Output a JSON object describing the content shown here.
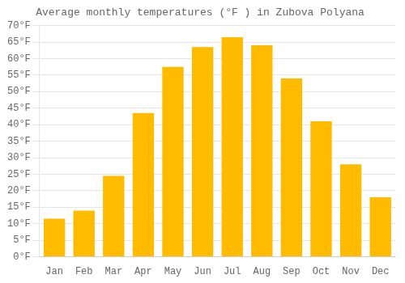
{
  "chart_data": {
    "type": "bar",
    "title": "Average monthly temperatures (°F ) in Zubova Polyana",
    "categories": [
      "Jan",
      "Feb",
      "Mar",
      "Apr",
      "May",
      "Jun",
      "Jul",
      "Aug",
      "Sep",
      "Oct",
      "Nov",
      "Dec"
    ],
    "values": [
      11.5,
      14.0,
      24.5,
      43.5,
      57.5,
      63.5,
      66.5,
      64.0,
      54.0,
      41.0,
      28.0,
      18.0
    ],
    "color": "#FFBB00",
    "ylim": [
      0,
      70
    ],
    "yticks": [
      {
        "value": 0,
        "label": "0°F"
      },
      {
        "value": 5,
        "label": "5°F"
      },
      {
        "value": 10,
        "label": "10°F"
      },
      {
        "value": 15,
        "label": "15°F"
      },
      {
        "value": 20,
        "label": "20°F"
      },
      {
        "value": 25,
        "label": "25°F"
      },
      {
        "value": 30,
        "label": "30°F"
      },
      {
        "value": 35,
        "label": "35°F"
      },
      {
        "value": 40,
        "label": "40°F"
      },
      {
        "value": 45,
        "label": "45°F"
      },
      {
        "value": 50,
        "label": "50°F"
      },
      {
        "value": 55,
        "label": "55°F"
      },
      {
        "value": 60,
        "label": "60°F"
      },
      {
        "value": 65,
        "label": "65°F"
      },
      {
        "value": 70,
        "label": "70°F"
      }
    ],
    "grid": true
  }
}
